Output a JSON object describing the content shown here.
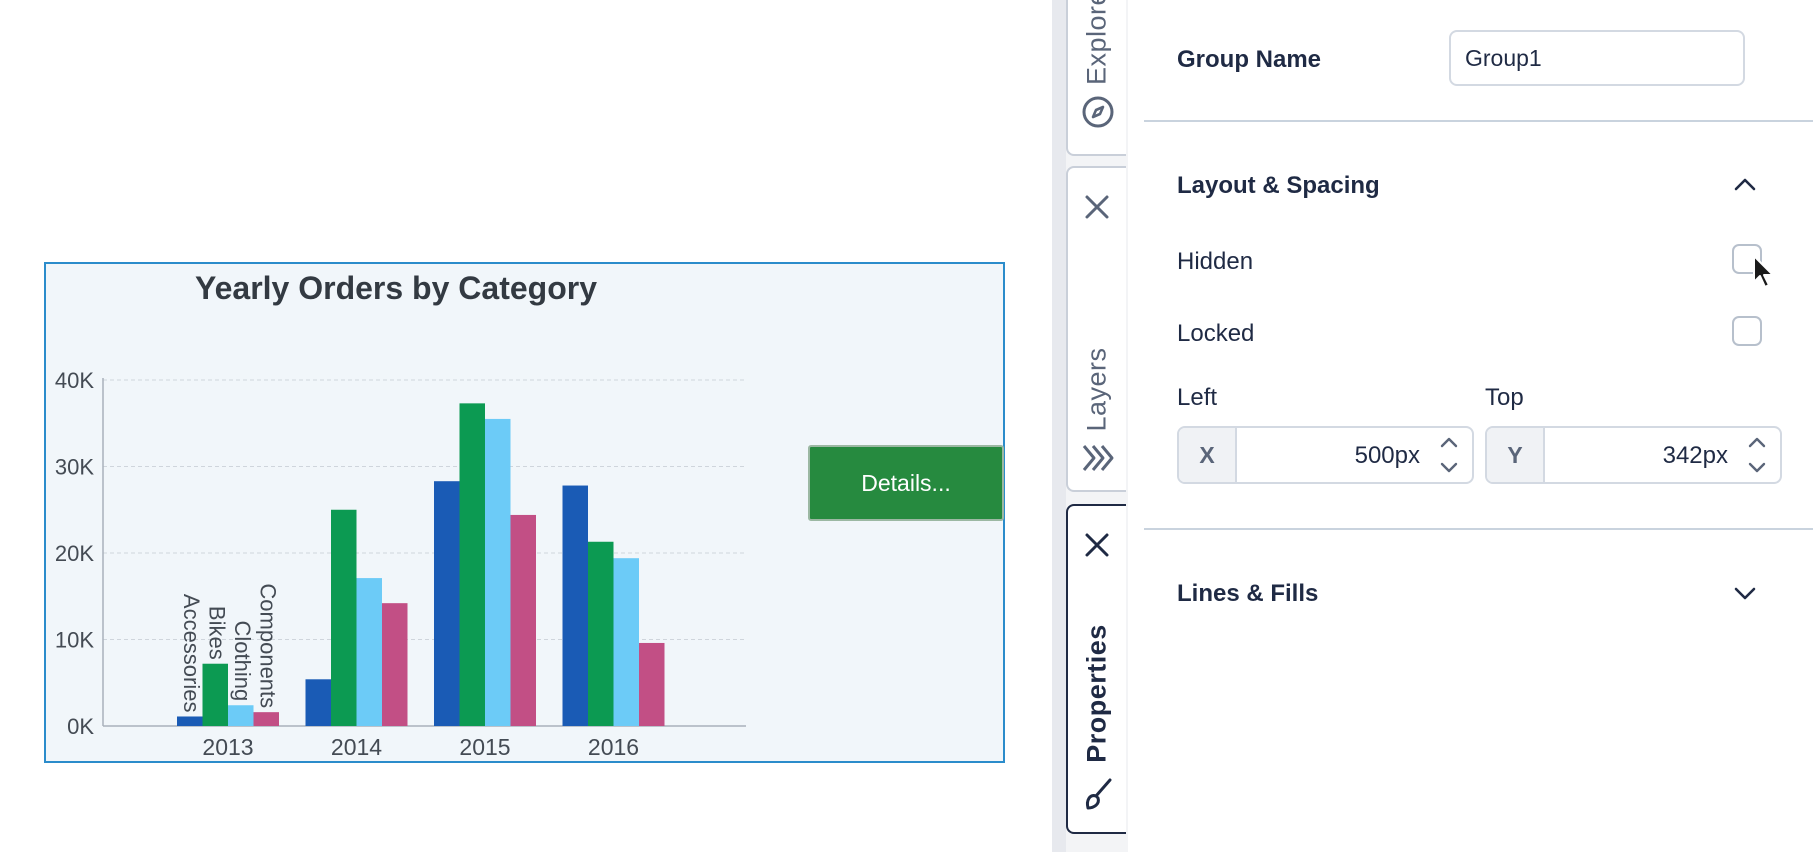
{
  "chart_data": {
    "type": "bar",
    "title": "Yearly Orders by Category",
    "categories": [
      "2013",
      "2014",
      "2015",
      "2016"
    ],
    "series": [
      {
        "name": "Accessories",
        "color": "#1a5bb5",
        "values": [
          1100,
          5400,
          28300,
          27800
        ]
      },
      {
        "name": "Bikes",
        "color": "#0c9a52",
        "values": [
          7200,
          25000,
          37300,
          21300
        ]
      },
      {
        "name": "Clothing",
        "color": "#6ccbf7",
        "values": [
          2400,
          17100,
          35500,
          19400
        ]
      },
      {
        "name": "Components",
        "color": "#c24f85",
        "values": [
          1600,
          14200,
          24400,
          9600
        ]
      }
    ],
    "y_ticks": [
      "0K",
      "10K",
      "20K",
      "30K",
      "40K"
    ],
    "ylim": [
      0,
      40000
    ],
    "grid": true,
    "series_labels_on_first_group": true
  },
  "chart_button": {
    "label": "Details...",
    "color": "#268a3f"
  },
  "tabs": [
    {
      "label": "Explore",
      "icon": "compass-icon"
    },
    {
      "label": "Layers",
      "icon": "layers-icon"
    },
    {
      "label": "Properties",
      "icon": "brush-icon"
    }
  ],
  "panel": {
    "group_name_label": "Group Name",
    "group_name_value": "Group1",
    "layout_section": {
      "title": "Layout & Spacing",
      "expanded": true
    },
    "hidden_label": "Hidden",
    "hidden_checked": false,
    "locked_label": "Locked",
    "locked_checked": false,
    "left_label": "Left",
    "top_label": "Top",
    "x_prefix": "X",
    "x_value": "500px",
    "y_prefix": "Y",
    "y_value": "342px",
    "fills_section": {
      "title": "Lines & Fills",
      "expanded": false
    }
  }
}
